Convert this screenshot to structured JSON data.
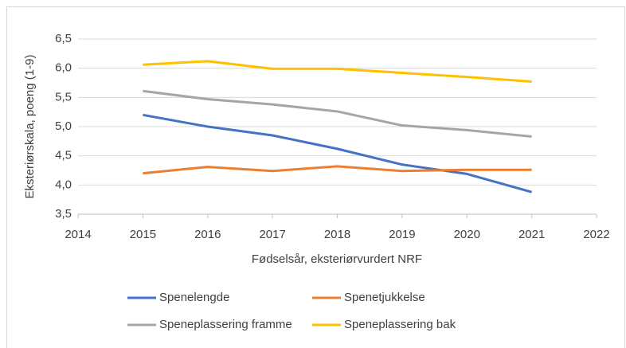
{
  "chart_data": {
    "type": "line",
    "x_label": "Fødselsår, eksteriørvurdert NRF",
    "y_label": "Eksteriørskala, poeng (1-9)",
    "x": [
      2015,
      2016,
      2017,
      2018,
      2019,
      2020,
      2021
    ],
    "series": [
      {
        "name": "Spenelengde",
        "color": "#4472c4",
        "values": [
          5.2,
          5.0,
          4.85,
          4.62,
          4.35,
          4.19,
          3.88
        ]
      },
      {
        "name": "Spenetjukkelse",
        "color": "#ed7d31",
        "values": [
          4.2,
          4.31,
          4.24,
          4.32,
          4.24,
          4.26,
          4.26
        ]
      },
      {
        "name": "Speneplassering framme",
        "color": "#a5a5a5",
        "values": [
          5.61,
          5.47,
          5.38,
          5.26,
          5.02,
          4.94,
          4.83
        ]
      },
      {
        "name": "Speneplassering bak",
        "color": "#ffc000",
        "values": [
          6.06,
          6.12,
          5.99,
          5.99,
          5.92,
          5.85,
          5.77
        ]
      }
    ],
    "xlim": [
      2014,
      2022
    ],
    "xticks": [
      2014,
      2015,
      2016,
      2017,
      2018,
      2019,
      2020,
      2021,
      2022
    ],
    "ylim": [
      3.5,
      6.5
    ],
    "yticks": [
      {
        "value": 3.5,
        "label": "3,5"
      },
      {
        "value": 4.0,
        "label": "4,0"
      },
      {
        "value": 4.5,
        "label": "4,5"
      },
      {
        "value": 5.0,
        "label": "5,0"
      },
      {
        "value": 5.5,
        "label": "5,5"
      },
      {
        "value": 6.0,
        "label": "6,0"
      },
      {
        "value": 6.5,
        "label": "6,5"
      }
    ],
    "grid": true,
    "legend": "bottom"
  }
}
